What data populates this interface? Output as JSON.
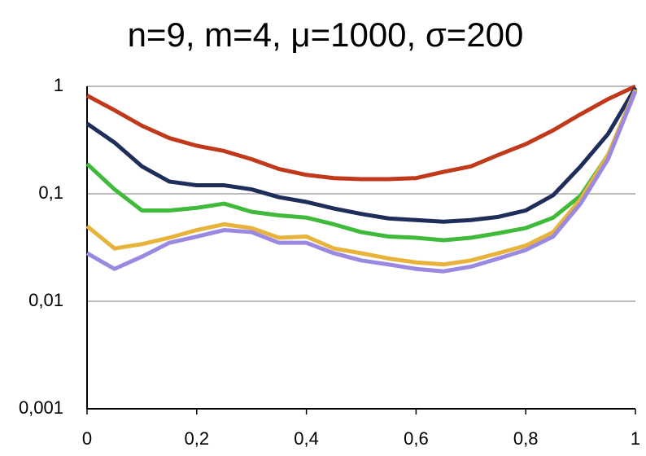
{
  "chart_data": {
    "type": "line",
    "title": "n=9, m=4, μ=1000, σ=200",
    "log_y": true,
    "grid": true,
    "x": [
      0,
      0.05,
      0.1,
      0.15,
      0.2,
      0.25,
      0.3,
      0.35,
      0.4,
      0.45,
      0.5,
      0.55,
      0.6,
      0.65,
      0.7,
      0.75,
      0.8,
      0.85,
      0.9,
      0.95,
      1
    ],
    "series": [
      {
        "color": "#c0391b",
        "values": [
          0.82,
          0.6,
          0.43,
          0.33,
          0.28,
          0.25,
          0.21,
          0.17,
          0.15,
          0.14,
          0.137,
          0.137,
          0.14,
          0.16,
          0.18,
          0.23,
          0.29,
          0.39,
          0.55,
          0.76,
          1
        ]
      },
      {
        "color": "#1f2d5a",
        "values": [
          0.45,
          0.3,
          0.18,
          0.13,
          0.12,
          0.12,
          0.11,
          0.093,
          0.084,
          0.073,
          0.065,
          0.059,
          0.057,
          0.055,
          0.057,
          0.061,
          0.07,
          0.097,
          0.18,
          0.36,
          0.97
        ]
      },
      {
        "color": "#3fba3a",
        "values": [
          0.19,
          0.11,
          0.07,
          0.07,
          0.074,
          0.081,
          0.068,
          0.063,
          0.06,
          0.052,
          0.044,
          0.04,
          0.039,
          0.037,
          0.039,
          0.043,
          0.048,
          0.06,
          0.096,
          0.23,
          0.9
        ]
      },
      {
        "color": "#e8b33a",
        "values": [
          0.05,
          0.031,
          0.034,
          0.039,
          0.046,
          0.052,
          0.048,
          0.039,
          0.04,
          0.031,
          0.028,
          0.025,
          0.023,
          0.022,
          0.024,
          0.028,
          0.033,
          0.044,
          0.089,
          0.23,
          0.93
        ]
      },
      {
        "color": "#9b88e0",
        "values": [
          0.028,
          0.02,
          0.026,
          0.035,
          0.04,
          0.046,
          0.044,
          0.035,
          0.035,
          0.028,
          0.024,
          0.022,
          0.02,
          0.019,
          0.021,
          0.025,
          0.03,
          0.04,
          0.081,
          0.21,
          0.9
        ]
      }
    ],
    "xlim": [
      0,
      1
    ],
    "xticks": [
      0,
      {
        "value": 0.2,
        "label": "0,2"
      },
      {
        "value": 0.4,
        "label": "0,4"
      },
      {
        "value": 0.6,
        "label": "0,6"
      },
      {
        "value": 0.8,
        "label": "0,8"
      },
      1
    ],
    "ylim": [
      0.001,
      1
    ],
    "yticks": [
      {
        "value": 0.001,
        "label": "0,001"
      },
      {
        "value": 0.01,
        "label": "0,01"
      },
      {
        "value": 0.1,
        "label": "0,1"
      },
      1
    ]
  }
}
